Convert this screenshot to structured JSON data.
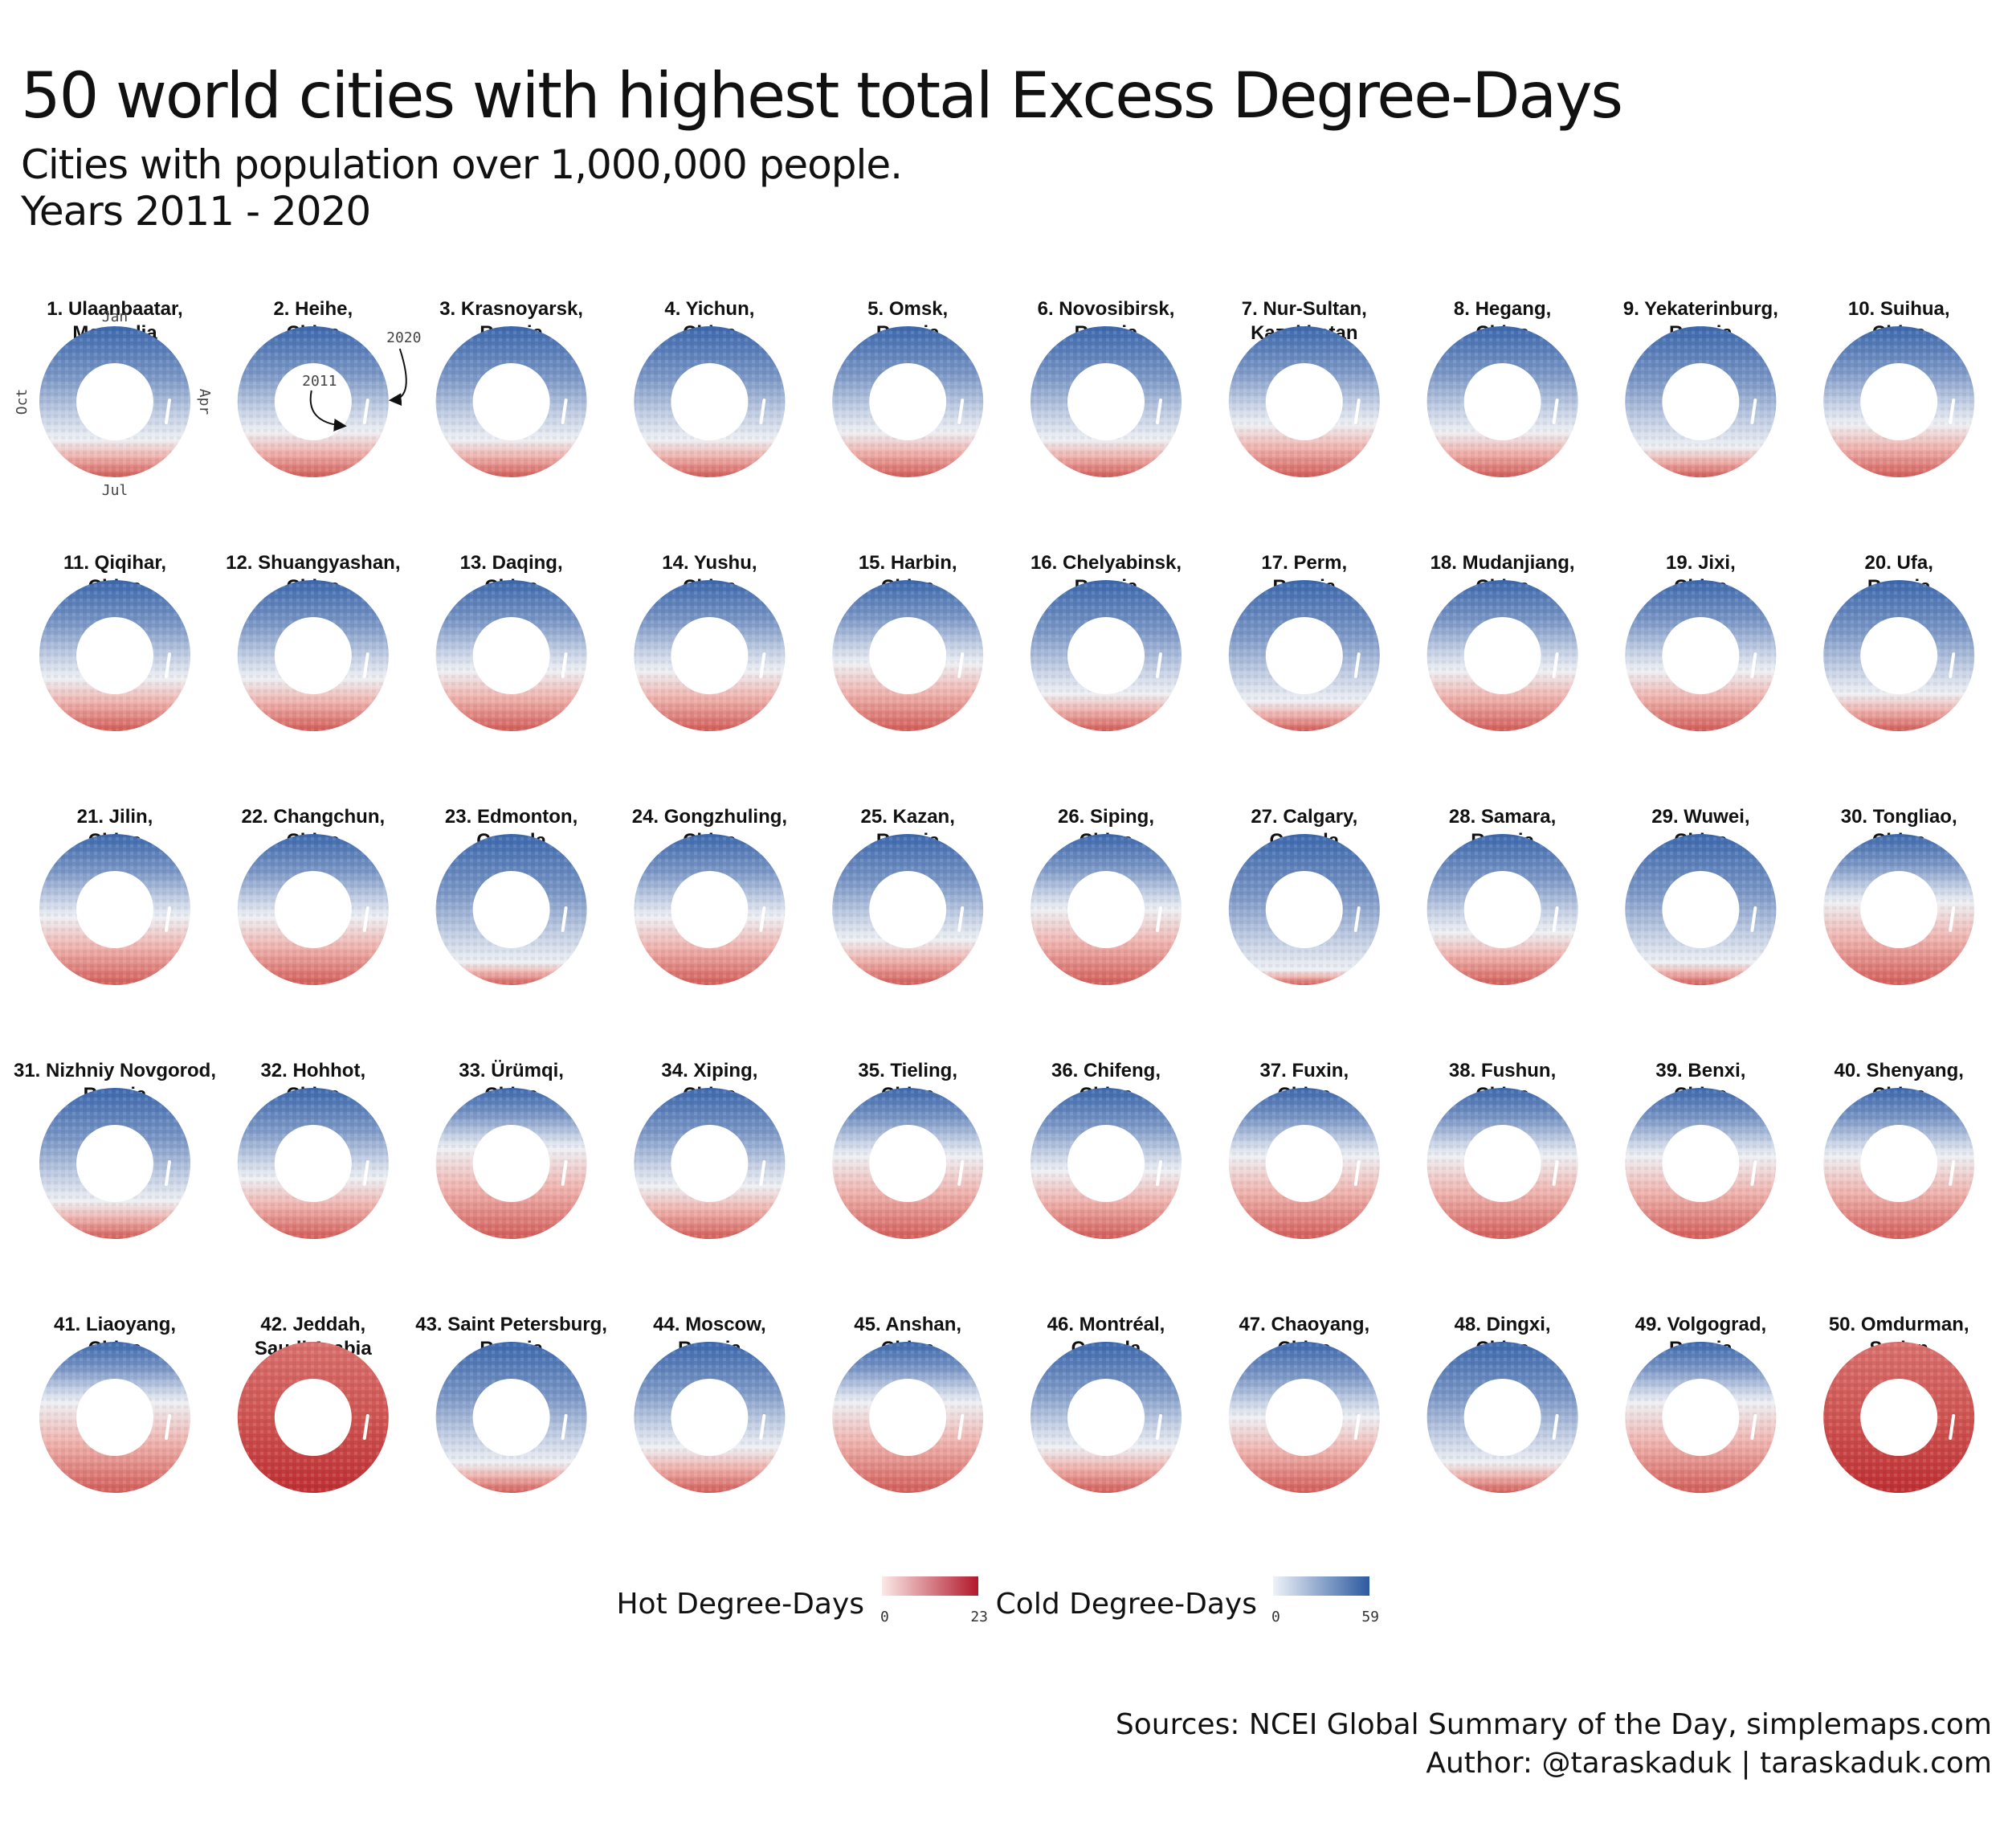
{
  "title": "50 world cities with highest total Excess Degree-Days",
  "subtitle_lines": [
    "Cities with population over 1,000,000 people.",
    "Years 2011 - 2020"
  ],
  "chart_data": {
    "type": "heatmap",
    "form": "radial calendar heatmap",
    "years": [
      2011,
      2020
    ],
    "angle_axis": "day of year",
    "radius_axis": "year",
    "guide": {
      "months": [
        "Jan",
        "Apr",
        "Jul",
        "Oct"
      ],
      "year_inner": "2011",
      "year_outer": "2020"
    },
    "cities": [
      {
        "rank": "1.",
        "name": "Ulaanbaatar,",
        "country": "Mongolia",
        "hot_share": 0.25
      },
      {
        "rank": "2.",
        "name": "Heihe,",
        "country": "China",
        "hot_share": 0.3
      },
      {
        "rank": "3.",
        "name": "Krasnoyarsk,",
        "country": "Russia",
        "hot_share": 0.25
      },
      {
        "rank": "4.",
        "name": "Yichun,",
        "country": "China",
        "hot_share": 0.25
      },
      {
        "rank": "5.",
        "name": "Omsk,",
        "country": "Russia",
        "hot_share": 0.3
      },
      {
        "rank": "6.",
        "name": "Novosibirsk,",
        "country": "Russia",
        "hot_share": 0.25
      },
      {
        "rank": "7.",
        "name": "Nur-Sultan,",
        "country": "Kazakhstan",
        "hot_share": 0.35
      },
      {
        "rank": "8.",
        "name": "Hegang,",
        "country": "China",
        "hot_share": 0.3
      },
      {
        "rank": "9.",
        "name": "Yekaterinburg,",
        "country": "Russia",
        "hot_share": 0.2
      },
      {
        "rank": "10.",
        "name": "Suihua,",
        "country": "China",
        "hot_share": 0.35
      },
      {
        "rank": "11.",
        "name": "Qiqihar,",
        "country": "China",
        "hot_share": 0.35
      },
      {
        "rank": "12.",
        "name": "Shuangyashan,",
        "country": "China",
        "hot_share": 0.35
      },
      {
        "rank": "13.",
        "name": "Daqing,",
        "country": "China",
        "hot_share": 0.4
      },
      {
        "rank": "14.",
        "name": "Yushu,",
        "country": "China",
        "hot_share": 0.4
      },
      {
        "rank": "15.",
        "name": "Harbin,",
        "country": "China",
        "hot_share": 0.45
      },
      {
        "rank": "16.",
        "name": "Chelyabinsk,",
        "country": "Russia",
        "hot_share": 0.25
      },
      {
        "rank": "17.",
        "name": "Perm,",
        "country": "Russia",
        "hot_share": 0.2
      },
      {
        "rank": "18.",
        "name": "Mudanjiang,",
        "country": "China",
        "hot_share": 0.4
      },
      {
        "rank": "19.",
        "name": "Jixi,",
        "country": "China",
        "hot_share": 0.4
      },
      {
        "rank": "20.",
        "name": "Ufa,",
        "country": "Russia",
        "hot_share": 0.25
      },
      {
        "rank": "21.",
        "name": "Jilin,",
        "country": "China",
        "hot_share": 0.45
      },
      {
        "rank": "22.",
        "name": "Changchun,",
        "country": "China",
        "hot_share": 0.45
      },
      {
        "rank": "23.",
        "name": "Edmonton,",
        "country": "Canada",
        "hot_share": 0.15
      },
      {
        "rank": "24.",
        "name": "Gongzhuling,",
        "country": "China",
        "hot_share": 0.45
      },
      {
        "rank": "25.",
        "name": "Kazan,",
        "country": "Russia",
        "hot_share": 0.3
      },
      {
        "rank": "26.",
        "name": "Siping,",
        "country": "China",
        "hot_share": 0.5
      },
      {
        "rank": "27.",
        "name": "Calgary,",
        "country": "Canada",
        "hot_share": 0.1
      },
      {
        "rank": "28.",
        "name": "Samara,",
        "country": "Russia",
        "hot_share": 0.35
      },
      {
        "rank": "29.",
        "name": "Wuwei,",
        "country": "China",
        "hot_share": 0.15
      },
      {
        "rank": "30.",
        "name": "Tongliao,",
        "country": "China",
        "hot_share": 0.55
      },
      {
        "rank": "31.",
        "name": "Nizhniy Novgorod,",
        "country": "Russia",
        "hot_share": 0.25
      },
      {
        "rank": "32.",
        "name": "Hohhot,",
        "country": "China",
        "hot_share": 0.4
      },
      {
        "rank": "33.",
        "name": "Ürümqi,",
        "country": "China",
        "hot_share": 0.6
      },
      {
        "rank": "34.",
        "name": "Xiping,",
        "country": "China",
        "hot_share": 0.35
      },
      {
        "rank": "35.",
        "name": "Tieling,",
        "country": "China",
        "hot_share": 0.55
      },
      {
        "rank": "36.",
        "name": "Chifeng,",
        "country": "China",
        "hot_share": 0.45
      },
      {
        "rank": "37.",
        "name": "Fuxin,",
        "country": "China",
        "hot_share": 0.55
      },
      {
        "rank": "38.",
        "name": "Fushun,",
        "country": "China",
        "hot_share": 0.55
      },
      {
        "rank": "39.",
        "name": "Benxi,",
        "country": "China",
        "hot_share": 0.55
      },
      {
        "rank": "40.",
        "name": "Shenyang,",
        "country": "China",
        "hot_share": 0.55
      },
      {
        "rank": "41.",
        "name": "Liaoyang,",
        "country": "China",
        "hot_share": 0.6
      },
      {
        "rank": "42.",
        "name": "Jeddah,",
        "country": "Saudi Arabia",
        "hot_share": 1.0
      },
      {
        "rank": "43.",
        "name": "Saint Petersburg,",
        "country": "Russia",
        "hot_share": 0.2
      },
      {
        "rank": "44.",
        "name": "Moscow,",
        "country": "Russia",
        "hot_share": 0.3
      },
      {
        "rank": "45.",
        "name": "Anshan,",
        "country": "China",
        "hot_share": 0.6
      },
      {
        "rank": "46.",
        "name": "Montréal,",
        "country": "Canada",
        "hot_share": 0.3
      },
      {
        "rank": "47.",
        "name": "Chaoyang,",
        "country": "China",
        "hot_share": 0.5
      },
      {
        "rank": "48.",
        "name": "Dingxi,",
        "country": "China",
        "hot_share": 0.2
      },
      {
        "rank": "49.",
        "name": "Volgograd,",
        "country": "Russia",
        "hot_share": 0.6
      },
      {
        "rank": "50.",
        "name": "Omdurman,",
        "country": "Sudan",
        "hot_share": 1.0
      }
    ],
    "legend": [
      {
        "title": "Hot Degree-Days",
        "min": "0",
        "max": "23",
        "color_low": "#fbe9e7",
        "color_high": "#b2182b"
      },
      {
        "title": "Cold Degree-Days",
        "min": "0",
        "max": "59",
        "color_low": "#eef2f8",
        "color_high": "#2c5aa0"
      }
    ]
  },
  "colors": {
    "hot_high": "#b2182b",
    "cold_high": "#2c5aa0",
    "neutral": "#eef0f4"
  },
  "footer": {
    "sources": "Sources: NCEI Global Summary of the Day, simplemaps.com",
    "author": "Author: @taraskaduk | taraskaduk.com"
  }
}
